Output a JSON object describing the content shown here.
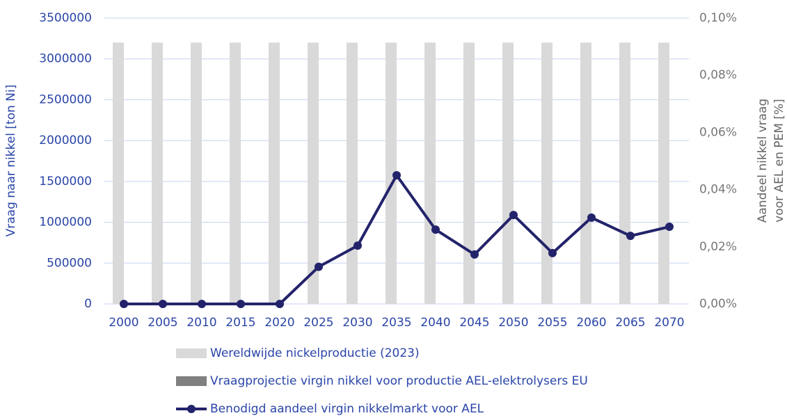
{
  "chart_data": {
    "type": "bar_line",
    "ylabel": "Vraag naar nikkel [ton Ni]",
    "y2label": [
      "Aandeel nikkel vraag",
      "voor AEL en PEM [%]"
    ],
    "categories": [
      "2000",
      "2005",
      "2010",
      "2015",
      "2020",
      "2025",
      "2030",
      "2035",
      "2040",
      "2045",
      "2050",
      "2055",
      "2060",
      "2065",
      "2070"
    ],
    "series": [
      {
        "name": "Wereldwijde nickelproductie (2023)",
        "type": "bar",
        "color": "#d9d9d9",
        "values": [
          3200000,
          3200000,
          3200000,
          3200000,
          3200000,
          3200000,
          3200000,
          3200000,
          3200000,
          3200000,
          3200000,
          3200000,
          3200000,
          3200000,
          3200000
        ]
      },
      {
        "name": "Vraagprojectie virgin nikkel voor productie AEL-elektrolysers EU",
        "type": "bar",
        "color": "#808080",
        "values": [
          0,
          0,
          0,
          0,
          0,
          0,
          0,
          0,
          0,
          0,
          0,
          0,
          0,
          0,
          0
        ]
      },
      {
        "name": "Benodigd aandeel virgin nikkelmarkt voor AEL",
        "type": "line",
        "axis": "y2",
        "color": "#23236b",
        "values": [
          0,
          0,
          0,
          0,
          0,
          0.013,
          0.0204,
          0.045,
          0.026,
          0.0173,
          0.0311,
          0.0178,
          0.0302,
          0.0238,
          0.027
        ]
      }
    ],
    "ylim": [
      0,
      3500000
    ],
    "yticks": [
      0,
      500000,
      1000000,
      1500000,
      2000000,
      2500000,
      3000000,
      3500000
    ],
    "y2lim": [
      0,
      0.1
    ],
    "y2ticks": [
      {
        "value": 0,
        "label": "0,00%"
      },
      {
        "value": 0.02,
        "label": "0,02%"
      },
      {
        "value": 0.04,
        "label": "0,04%"
      },
      {
        "value": 0.06,
        "label": "0,06%"
      },
      {
        "value": 0.08,
        "label": "0,08%"
      },
      {
        "value": 0.1,
        "label": "0,10%"
      }
    ],
    "grid": true
  }
}
